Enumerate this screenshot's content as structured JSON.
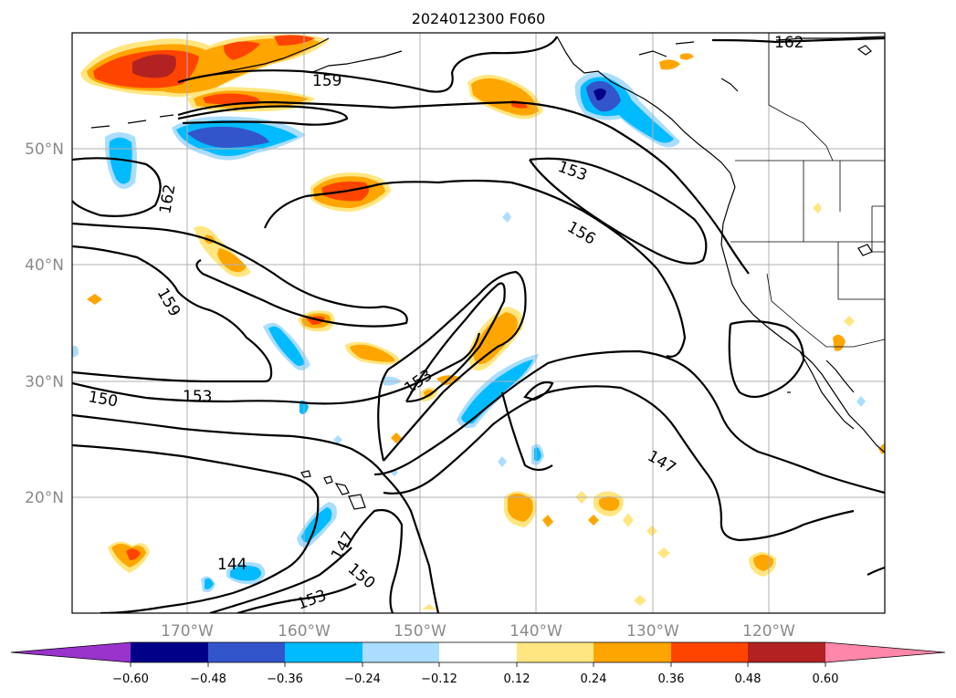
{
  "title": "2024012300 F060",
  "map": {
    "lat_labels": [
      "50°N",
      "40°N",
      "30°N",
      "20°N"
    ],
    "lon_labels": [
      "170°W",
      "160°W",
      "150°W",
      "140°W",
      "130°W",
      "120°W"
    ],
    "contour_labels": [
      "162",
      "159",
      "162",
      "153",
      "156",
      "159",
      "150",
      "153",
      "153",
      "147",
      "147",
      "144",
      "150",
      "153"
    ]
  },
  "colorbar": {
    "ticks": [
      "−0.60",
      "−0.48",
      "−0.36",
      "−0.24",
      "−0.12",
      "0.12",
      "0.24",
      "0.36",
      "0.48",
      "0.60"
    ],
    "colors": [
      "#9933cc",
      "#000088",
      "#3355cc",
      "#00bbff",
      "#aaddff",
      "#ffffff",
      "#ffe680",
      "#ffa500",
      "#ff4400",
      "#b22222",
      "#ff88aa"
    ],
    "extend": "both"
  },
  "shading_colors": {
    "dark_red": "#b22222",
    "red": "#ff4400",
    "orange": "#ffa500",
    "light_yellow": "#ffe680",
    "light_blue": "#aaddff",
    "blue": "#00bbff",
    "mid_blue": "#3355cc",
    "navy": "#000088"
  }
}
